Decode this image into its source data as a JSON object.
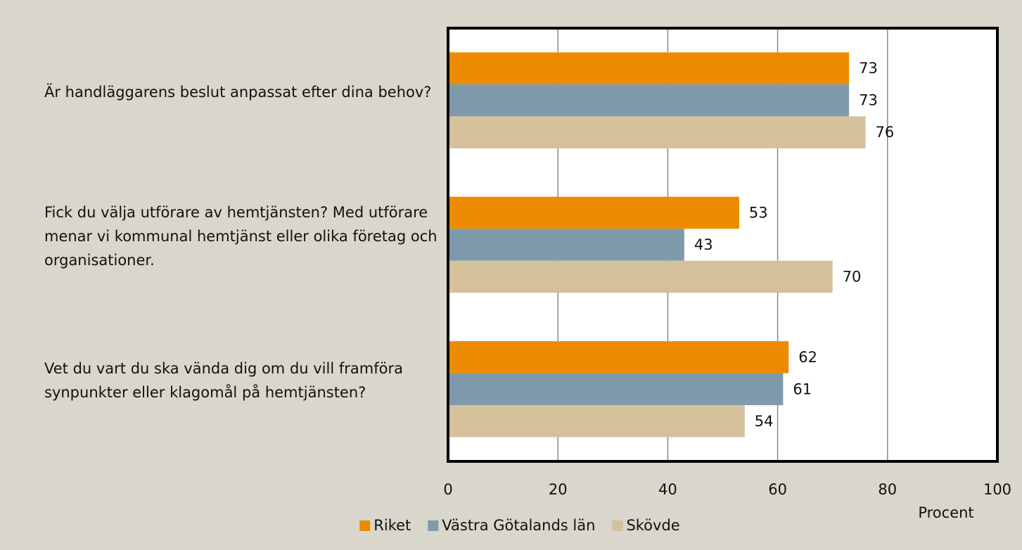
{
  "chart_data": {
    "type": "hbar",
    "categories": [
      "Är handläggarens beslut anpassat efter dina behov?",
      "Fick du välja utförare av hemtjänsten? Med utförare menar vi kommunal hemtjänst eller olika företag och organisationer.",
      "Vet du vart du ska vända dig om du vill framföra synpunkter eller klagomål på hemtjänsten?"
    ],
    "series": [
      {
        "name": "Riket",
        "color": "#ed8b00",
        "values": [
          73,
          53,
          62
        ]
      },
      {
        "name": "Västra Götalands län",
        "color": "#7f9aab",
        "values": [
          73,
          43,
          61
        ]
      },
      {
        "name": "Skövde",
        "color": "#d4c09a",
        "values": [
          76,
          70,
          54
        ]
      }
    ],
    "xlim": [
      0,
      100
    ],
    "xticks": [
      0,
      20,
      40,
      60,
      80,
      100
    ],
    "x_label": "Procent",
    "grid": true,
    "legend": "bottom"
  }
}
